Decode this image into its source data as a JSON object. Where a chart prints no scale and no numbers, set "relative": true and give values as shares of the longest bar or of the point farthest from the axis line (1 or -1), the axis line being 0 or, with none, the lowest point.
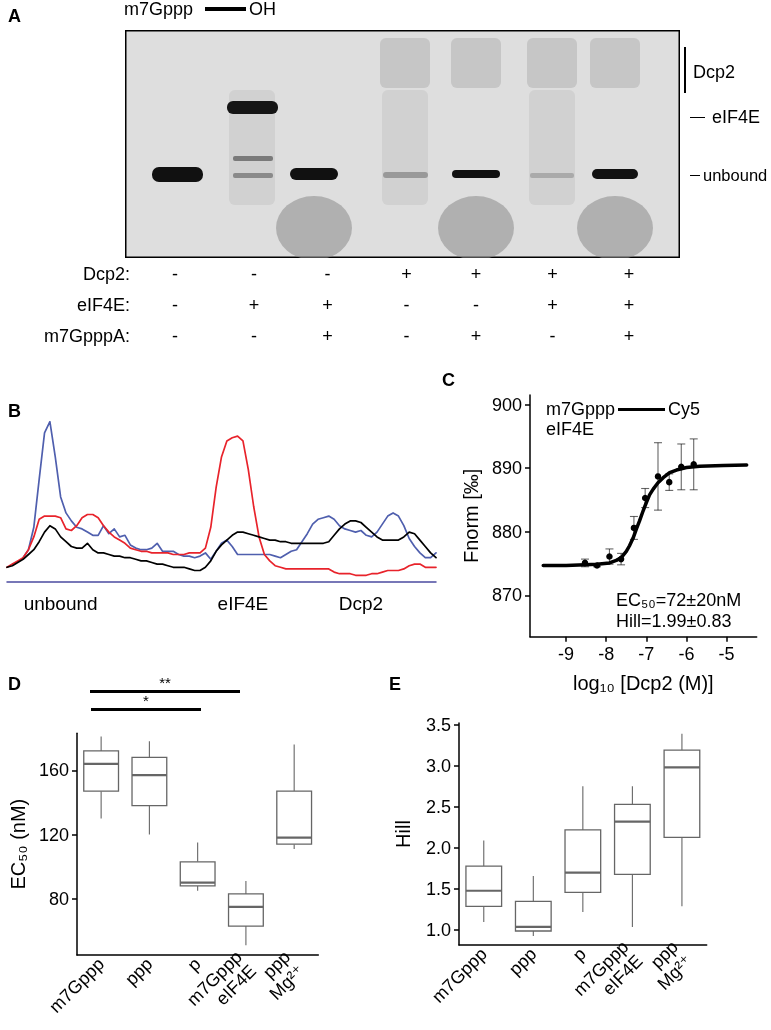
{
  "chart_data": [
    {
      "type": "other",
      "title": "A",
      "annotations": [
        "m7Gppp",
        "OH",
        "Dcp2",
        "eIF4E",
        "unbound"
      ],
      "y_categories": [
        "Dcp2:",
        "eIF4E:",
        "m7GpppA:"
      ],
      "cell_labels": [
        [
          "-",
          "-",
          "-",
          "+",
          "+",
          "+",
          "+"
        ],
        [
          "-",
          "+",
          "+",
          "-",
          "-",
          "+",
          "+"
        ],
        [
          "-",
          "-",
          "+",
          "-",
          "+",
          "-",
          "+"
        ]
      ]
    },
    {
      "type": "line",
      "title": "B",
      "relative": true,
      "categories": [
        null,
        null,
        null,
        null,
        null,
        null,
        null,
        null,
        null,
        null,
        "unbound",
        null,
        null,
        null,
        null,
        null,
        null,
        null,
        null,
        null,
        null,
        null,
        null,
        null,
        null,
        null,
        null,
        null,
        null,
        null,
        null,
        null,
        null,
        null,
        null,
        null,
        null,
        null,
        null,
        null,
        null,
        null,
        null,
        null,
        "eIF4E",
        null,
        null,
        null,
        null,
        null,
        null,
        null,
        null,
        null,
        null,
        null,
        null,
        null,
        null,
        null,
        null,
        null,
        null,
        null,
        null,
        null,
        "Dcp2",
        null,
        null,
        null,
        null,
        null,
        null,
        null,
        null,
        null,
        null,
        null,
        null,
        null,
        null
      ],
      "series": [
        {
          "color": "#4f5fae",
          "values": [
            null,
            null,
            null,
            0.15,
            0.2,
            0.34,
            0.64,
            0.93,
            1,
            0.78,
            0.53,
            0.43,
            0.38,
            0.34,
            0.33,
            0.31,
            0.29,
            0.29,
            0.35,
            0.3,
            0.33,
            0.28,
            0.29,
            0.23,
            0.21,
            0.2,
            0.2,
            0.21,
            0.24,
            0.19,
            0.19,
            0.19,
            0.17,
            0.16,
            0.16,
            0.15,
            0.16,
            0.18,
            0.14,
            0.19,
            0.24,
            0.26,
            0.22,
            0.17,
            0.17,
            0.17,
            0.17,
            0.17,
            0.17,
            0.17,
            0.16,
            0.15,
            0.17,
            0.19,
            0.2,
            0.25,
            0.3,
            0.36,
            0.39,
            0.4,
            0.41,
            0.39,
            0.35,
            0.33,
            0.32,
            0.31,
            0.32,
            0.29,
            0.28,
            0.31,
            0.36,
            0.41,
            0.43,
            0.41,
            0.35,
            0.27,
            0.22,
            0.18,
            0.15,
            0.15,
            0.18
          ]
        },
        {
          "color": "#e8232b",
          "values": [
            0.09,
            0.11,
            0.13,
            0.15,
            0.2,
            0.28,
            0.39,
            0.41,
            0.41,
            0.41,
            0.4,
            0.33,
            0.32,
            0.35,
            0.4,
            0.42,
            0.42,
            0.4,
            0.35,
            0.31,
            0.28,
            0.26,
            0.24,
            0.21,
            0.2,
            0.19,
            0.19,
            0.18,
            0.18,
            0.18,
            0.18,
            0.17,
            0.17,
            0.17,
            0.18,
            0.18,
            0.18,
            0.21,
            0.34,
            0.59,
            0.78,
            0.88,
            0.9,
            0.91,
            0.88,
            0.7,
            0.47,
            0.28,
            0.17,
            0.13,
            0.1,
            0.09,
            0.08,
            0.08,
            0.08,
            0.08,
            0.08,
            0.08,
            0.08,
            0.08,
            0.08,
            0.06,
            0.05,
            0.05,
            0.05,
            0.04,
            0.04,
            0.04,
            0.05,
            0.05,
            0.06,
            0.07,
            0.07,
            0.07,
            0.08,
            0.1,
            0.11,
            0.11,
            0.09,
            0.09,
            0.09
          ]
        },
        {
          "color": "#000000",
          "values": [
            0.09,
            0.1,
            0.12,
            0.14,
            0.17,
            0.2,
            0.25,
            0.31,
            0.35,
            0.33,
            0.28,
            0.25,
            0.22,
            0.21,
            0.21,
            0.24,
            0.2,
            0.18,
            0.18,
            0.17,
            0.16,
            0.16,
            0.15,
            0.15,
            0.14,
            0.13,
            0.13,
            0.12,
            0.11,
            0.11,
            0.1,
            0.09,
            0.09,
            0.09,
            0.08,
            0.07,
            0.07,
            0.09,
            0.13,
            0.19,
            0.23,
            0.26,
            0.29,
            0.31,
            0.31,
            0.3,
            0.29,
            0.28,
            0.27,
            0.26,
            0.26,
            0.25,
            0.25,
            0.24,
            0.24,
            0.24,
            0.24,
            0.24,
            0.24,
            0.24,
            0.25,
            0.29,
            0.33,
            0.36,
            0.38,
            0.38,
            0.37,
            0.34,
            0.31,
            0.28,
            0.26,
            0.26,
            0.26,
            0.26,
            0.28,
            0.31,
            0.3,
            0.26,
            0.22,
            0.18,
            0.15
          ]
        }
      ]
    },
    {
      "type": "scatter",
      "title": "C",
      "xlabel": "log₁₀ [Dcp2 (M)]",
      "ylabel": "Fnorm [‰]",
      "xlim": [
        -9.9,
        -4.25
      ],
      "xticks": [
        -9,
        -8,
        -7,
        -6,
        -5
      ],
      "ylim": [
        863.5,
        901.5
      ],
      "yticks": [
        870,
        880,
        890,
        900
      ],
      "annotations": [
        "m7Gppp",
        "Cy5",
        "eIF4E",
        "EC₅₀=72±20nM",
        "Hill=1.99±0.83"
      ],
      "series": [
        {
          "type": "line",
          "color": "#000000",
          "marker": "none",
          "x": [
            -9.57,
            -9.0,
            -8.53,
            -8.23,
            -7.92,
            -7.75,
            -7.63,
            -7.5,
            -7.42,
            -7.33,
            -7.25,
            -7.17,
            -7.08,
            -7.0,
            -6.92,
            -6.83,
            -6.71,
            -6.58,
            -6.42,
            -6.25,
            -6.0,
            -5.67,
            -5.08,
            -4.5
          ],
          "values": [
            874.7,
            874.7,
            874.8,
            874.9,
            875.1,
            875.5,
            875.9,
            876.9,
            877.8,
            879.0,
            880.4,
            881.7,
            883.3,
            884.6,
            885.8,
            886.7,
            887.7,
            888.5,
            889.3,
            889.7,
            890.1,
            890.3,
            890.4,
            890.5
          ]
        },
        {
          "type": "scatter",
          "color": "#000000",
          "marker": "circle",
          "x": [
            -8.53,
            -8.23,
            -7.92,
            -7.63,
            -7.31,
            -7.03,
            -6.71,
            -6.43,
            -6.13,
            -5.82
          ],
          "values": [
            875.1,
            874.7,
            876.1,
            875.7,
            880.6,
            885.3,
            888.7,
            887.8,
            890.2,
            890.6
          ],
          "errors": [
            0.6,
            0.2,
            1.2,
            0.9,
            1.8,
            1.5,
            5.3,
            1.3,
            3.6,
            4.0
          ]
        }
      ]
    },
    {
      "type": "box",
      "title": "D",
      "ylabel": "EC₅₀ (nM)",
      "ylim": [
        45,
        183
      ],
      "yticks": [
        80,
        120,
        160
      ],
      "annotations": [
        "**",
        "*"
      ],
      "categories": [
        "m7Gppp",
        "ppp",
        "p",
        "m7Gppp\neIF4E",
        "ppp\nMg²⁺"
      ],
      "series": [
        {
          "color": "#666666",
          "boxes": [
            {
              "low": 130,
              "q1": 147,
              "median": 164,
              "q3": 172,
              "high": 181
            },
            {
              "low": 120,
              "q1": 138,
              "median": 157,
              "q3": 168,
              "high": 178
            },
            {
              "low": 85,
              "q1": 88,
              "median": 90,
              "q3": 103,
              "high": 115
            },
            {
              "low": 51,
              "q1": 63,
              "median": 75,
              "q3": 83,
              "high": 91
            },
            {
              "low": 111,
              "q1": 114,
              "median": 118,
              "q3": 147,
              "high": 176
            }
          ]
        }
      ]
    },
    {
      "type": "box",
      "title": "E",
      "ylabel": "Hill",
      "ylim": [
        0.82,
        3.52
      ],
      "yticks": [
        {
          "value": 1,
          "label": "1.0"
        },
        1.5,
        {
          "value": 2,
          "label": "2.0"
        },
        2.5,
        {
          "value": 3,
          "label": "3.0"
        },
        3.5
      ],
      "categories": [
        "m7Gppp",
        "ppp",
        "p",
        "m7Gppp\neIF4E",
        "ppp\nMg²⁺"
      ],
      "series": [
        {
          "color": "#666666",
          "boxes": [
            {
              "low": 1.1,
              "q1": 1.29,
              "median": 1.48,
              "q3": 1.78,
              "high": 2.09
            },
            {
              "low": 0.93,
              "q1": 0.99,
              "median": 1.04,
              "q3": 1.35,
              "high": 1.66
            },
            {
              "low": 1.22,
              "q1": 1.46,
              "median": 1.7,
              "q3": 2.22,
              "high": 2.75
            },
            {
              "low": 1.04,
              "q1": 1.68,
              "median": 2.32,
              "q3": 2.53,
              "high": 2.75
            },
            {
              "low": 1.29,
              "q1": 2.13,
              "median": 2.98,
              "q3": 3.19,
              "high": 3.39
            }
          ]
        }
      ]
    }
  ]
}
